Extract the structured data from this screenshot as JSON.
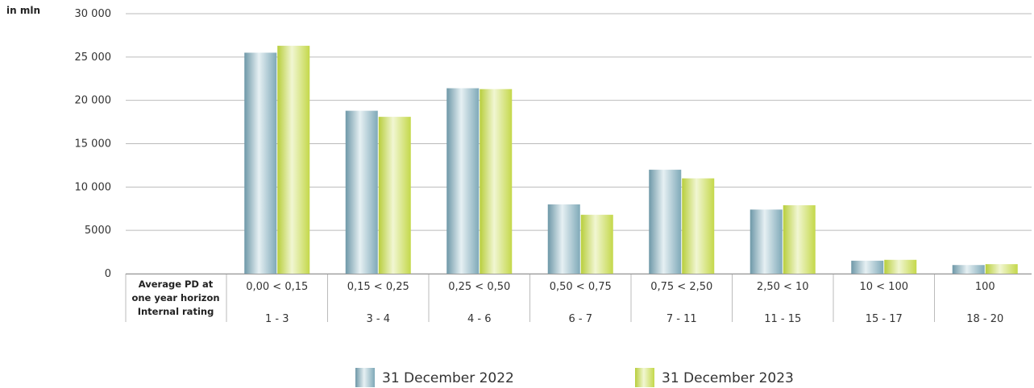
{
  "chart_data": {
    "type": "bar",
    "unit_label": "in mln",
    "ylim": [
      0,
      30000
    ],
    "yticks": [
      "0",
      "5000",
      "10 000",
      "15 000",
      "20 000",
      "25 000",
      "30 000"
    ],
    "ytick_values": [
      0,
      5000,
      10000,
      15000,
      20000,
      25000,
      30000
    ],
    "row_headers": {
      "pd": [
        "Average PD at",
        "one year horizon"
      ],
      "rating": "Internal rating"
    },
    "categories": [
      "0,00 < 0,15",
      "0,15 < 0,25",
      "0,25 < 0,50",
      "0,50 < 0,75",
      "0,75 < 2,50",
      "2,50 < 10",
      "10 < 100",
      "100"
    ],
    "ratings": [
      "1 - 3",
      "3 - 4",
      "4 - 6",
      "6 - 7",
      "7 - 11",
      "11 - 15",
      "15 - 17",
      "18 - 20"
    ],
    "series": [
      {
        "name": "31 December 2022",
        "values": [
          25500,
          18800,
          21400,
          8000,
          12000,
          7400,
          1500,
          1000
        ]
      },
      {
        "name": "31 December 2023",
        "values": [
          26300,
          18100,
          21300,
          6800,
          11000,
          7900,
          1600,
          1100
        ]
      }
    ],
    "colors": {
      "series_2022": "#7FA9B8",
      "series_2023": "#C8DC50",
      "grid": "#BBBBBB"
    },
    "grid": true,
    "legend_position": "bottom-center"
  }
}
